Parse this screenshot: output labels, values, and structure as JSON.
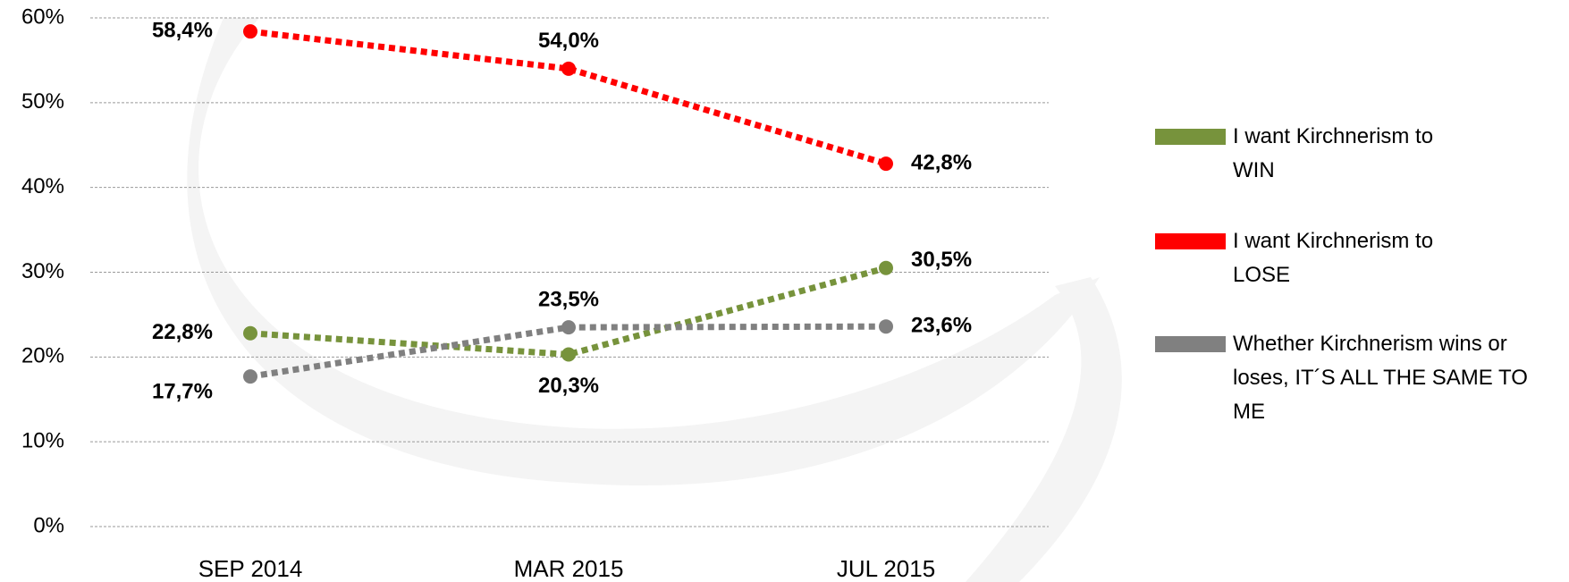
{
  "chart_data": {
    "type": "line",
    "categories": [
      "SEP 2014",
      "MAR 2015",
      "JUL 2015"
    ],
    "series": [
      {
        "name": "I want Kirchnerism to WIN",
        "color": "#77933c",
        "values": [
          22.8,
          20.3,
          30.5
        ],
        "value_labels": [
          "22,8%",
          "20,3%",
          "30,5%"
        ]
      },
      {
        "name": "I want Kirchnerism to LOSE",
        "color": "#ff0000",
        "values": [
          58.4,
          54.0,
          42.8
        ],
        "value_labels": [
          "58,4%",
          "54,0%",
          "42,8%"
        ]
      },
      {
        "name": "Whether Kirchnerism wins or loses, IT´S ALL THE SAME TO ME",
        "color": "#808080",
        "values": [
          17.7,
          23.5,
          23.6
        ],
        "value_labels": [
          "17,7%",
          "23,5%",
          "23,6%"
        ]
      }
    ],
    "ylim": [
      0,
      60
    ],
    "yticks": [
      {
        "value": 0,
        "label": "0%"
      },
      {
        "value": 10,
        "label": "10%"
      },
      {
        "value": 20,
        "label": "20%"
      },
      {
        "value": 30,
        "label": "30%"
      },
      {
        "value": 40,
        "label": "40%"
      },
      {
        "value": 50,
        "label": "50%"
      },
      {
        "value": 60,
        "label": "60%"
      }
    ],
    "grid": true,
    "legend": "right"
  }
}
